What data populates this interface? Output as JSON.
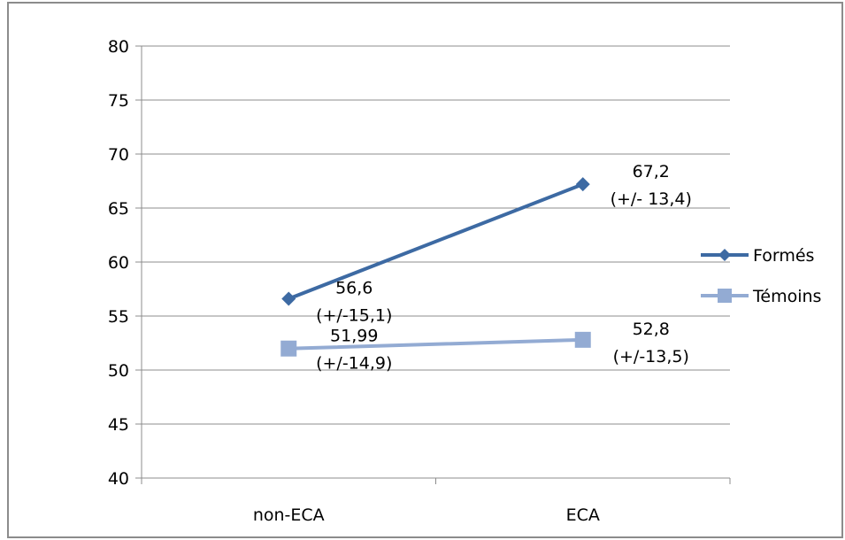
{
  "chart_data": {
    "type": "line",
    "categories": [
      "non-ECA",
      "ECA"
    ],
    "ylim": [
      40,
      80
    ],
    "yticks": [
      40,
      45,
      50,
      55,
      60,
      65,
      70,
      75,
      80
    ],
    "ytick_labels": [
      "40",
      "45",
      "50",
      "55",
      "60",
      "65",
      "70",
      "75",
      "80"
    ],
    "grid": true,
    "legend_position": "right",
    "series": [
      {
        "name": "Formés",
        "values": [
          56.6,
          67.2
        ],
        "color": "#3d6aa3",
        "marker": "diamond",
        "labels": [
          [
            "56,6",
            "(+/-15,1)"
          ],
          [
            "67,2",
            "(+/- 13,4)"
          ]
        ]
      },
      {
        "name": "Témoins",
        "values": [
          51.99,
          52.8
        ],
        "color": "#93abd3",
        "marker": "square",
        "labels": [
          [
            "51,99",
            "(+/-14,9)"
          ],
          [
            "52,8",
            "(+/-13,5)"
          ]
        ]
      }
    ]
  }
}
